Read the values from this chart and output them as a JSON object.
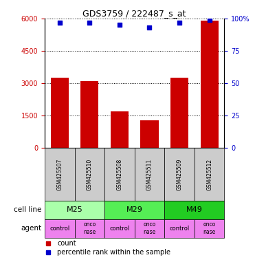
{
  "title": "GDS3759 / 222487_s_at",
  "samples": [
    "GSM425507",
    "GSM425510",
    "GSM425508",
    "GSM425511",
    "GSM425509",
    "GSM425512"
  ],
  "counts": [
    3250,
    3100,
    1700,
    1280,
    3250,
    5900
  ],
  "percentile_ranks": [
    97,
    97,
    95,
    93,
    97,
    99
  ],
  "ylim_left": [
    0,
    6000
  ],
  "ylim_right": [
    0,
    100
  ],
  "yticks_left": [
    0,
    1500,
    3000,
    4500,
    6000
  ],
  "yticks_right": [
    0,
    25,
    50,
    75,
    100
  ],
  "ytick_labels_left": [
    "0",
    "1500",
    "3000",
    "4500",
    "6000"
  ],
  "ytick_labels_right": [
    "0",
    "25",
    "50",
    "75",
    "100%"
  ],
  "cell_lines": [
    {
      "label": "M25",
      "span": [
        0,
        2
      ],
      "color": "#AAFFAA"
    },
    {
      "label": "M29",
      "span": [
        2,
        4
      ],
      "color": "#55EE55"
    },
    {
      "label": "M49",
      "span": [
        4,
        6
      ],
      "color": "#22CC22"
    }
  ],
  "agents": [
    "control",
    "onconase",
    "control",
    "onconase",
    "control",
    "onconase"
  ],
  "agent_color": "#EE82EE",
  "bar_color": "#CC0000",
  "dot_color": "#0000CC",
  "sample_bg_color": "#CCCCCC",
  "legend_count_color": "#CC0000",
  "legend_pct_color": "#0000CC"
}
